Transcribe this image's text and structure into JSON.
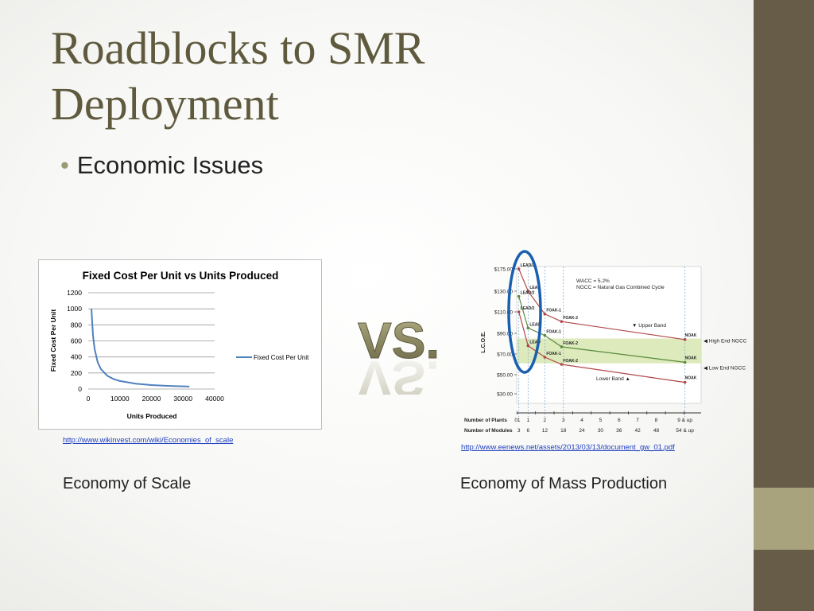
{
  "slide": {
    "title": "Roadblocks to SMR Deployment",
    "bullet": "Economic Issues",
    "vs_text": "VS.",
    "colors": {
      "sidebar": "#665c48",
      "accent": "#a8a37c",
      "title": "#5f5a3e"
    }
  },
  "left": {
    "url": "http://www.wikinvest.com/wiki/Economies_of_scale",
    "caption": "Economy of Scale"
  },
  "right": {
    "url": "http://www.eenews.net/assets/2013/03/13/document_gw_01.pdf",
    "caption": "Economy of Mass Production"
  },
  "chart_data": [
    {
      "type": "line",
      "title": "Fixed Cost Per Unit vs Units Produced",
      "xlabel": "Units Produced",
      "ylabel": "Fixed Cost Per Unit",
      "xlim": [
        0,
        40000
      ],
      "ylim": [
        0,
        1200
      ],
      "x_ticks": [
        "0",
        "10000",
        "20000",
        "30000",
        "40000"
      ],
      "y_ticks": [
        "0",
        "200",
        "400",
        "600",
        "800",
        "1000",
        "1200"
      ],
      "grid": true,
      "legend": "right",
      "series": [
        {
          "name": "Fixed Cost Per Unit",
          "color": "#4f81bd",
          "x": [
            1000,
            1500,
            2000,
            3000,
            4000,
            6000,
            8000,
            10000,
            15000,
            20000,
            25000,
            32000
          ],
          "y": [
            1000,
            667,
            500,
            333,
            250,
            167,
            125,
            100,
            67,
            50,
            40,
            31
          ]
        }
      ]
    },
    {
      "type": "line",
      "ylabel": "L.C.O.E.",
      "y_ticks": [
        "$30.00",
        "$50.00",
        "$70.00",
        "$90.00",
        "$110.00",
        "$130.00",
        "$175.00"
      ],
      "y_tick_values": [
        30,
        50,
        70,
        90,
        110,
        130,
        175
      ],
      "ylim": [
        20,
        180
      ],
      "x_positions": [
        0,
        1,
        2,
        3,
        4,
        5,
        6,
        7,
        8,
        9
      ],
      "row_labels": [
        "Number of Plants",
        "Number of Modules"
      ],
      "plants": [
        "0",
        "1",
        "1",
        "2",
        "3",
        "4",
        "5",
        "6",
        "7",
        "8",
        "9 & up"
      ],
      "plants_x": [
        -0.55,
        -0.4,
        0.1,
        1,
        2,
        3,
        4,
        5,
        6,
        7,
        8.55
      ],
      "modules": [
        "3",
        "6",
        "12",
        "18",
        "24",
        "30",
        "36",
        "42",
        "48",
        "54 & up"
      ],
      "modules_x": [
        -0.4,
        0.1,
        1,
        2,
        3,
        4,
        5,
        6,
        7,
        8.55
      ],
      "notes": [
        "WACC = 5.2%",
        "NGCC = Natural Gas Combined Cycle"
      ],
      "band": {
        "label": "NGCC",
        "ymin": 61,
        "ymax": 85,
        "color": "#d7e6b0"
      },
      "band_labels": [
        {
          "text": "High End NGCC",
          "y": 83
        },
        {
          "text": "Low End NGCC",
          "y": 57
        }
      ],
      "series": [
        {
          "name": "Upper Band",
          "color": "#b04848",
          "x": [
            -0.4,
            0.1,
            1,
            1.9,
            8.55
          ],
          "y": [
            175,
            130,
            108,
            101,
            84
          ],
          "point_labels": [
            "LEAD/2",
            "LEAD",
            "FOAK-1",
            "FOAK-2",
            "NOAK"
          ]
        },
        {
          "name": "",
          "color": "#5a8a3a",
          "x": [
            -0.4,
            0.1,
            1,
            1.9,
            8.55
          ],
          "y": [
            125,
            95,
            88,
            77,
            62
          ],
          "point_labels": [
            "LEAD/2",
            "LEAD",
            "FOAK-1",
            "FOAK-2",
            "NOAK"
          ]
        },
        {
          "name": "Lower Band",
          "color": "#b04848",
          "x": [
            -0.4,
            0.1,
            1,
            1.9,
            8.55
          ],
          "y": [
            110,
            78,
            67,
            60,
            42
          ],
          "point_labels": [
            "LEAD/2",
            "LEAD",
            "FOAK-1",
            "FOAK-2",
            "NOAK"
          ]
        }
      ],
      "band_names": [
        "Upper Band",
        "Lower Band"
      ],
      "highlight": "ellipse around LEAD/2 and LEAD points"
    }
  ]
}
